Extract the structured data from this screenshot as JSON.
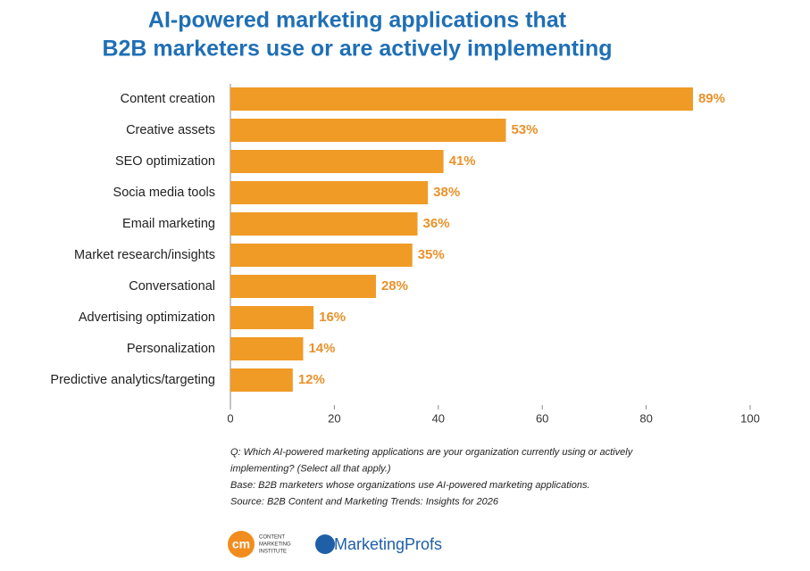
{
  "chart_data": {
    "type": "hbar",
    "title": [
      "AI-powered marketing applications that",
      "B2B marketers use or are actively implementing"
    ],
    "categories": [
      "Content creation",
      "Creative assets",
      "SEO optimization",
      "Socia media tools",
      "Email marketing",
      "Market research/insights",
      "Conversational",
      "Advertising optimization",
      "Personalization",
      "Predictive analytics/targeting"
    ],
    "values": [
      89,
      53,
      41,
      38,
      36,
      35,
      28,
      16,
      14,
      12
    ],
    "value_labels": [
      "89%",
      "53%",
      "41%",
      "38%",
      "36%",
      "35%",
      "28%",
      "16%",
      "14%",
      "12%"
    ],
    "color": "#ef9b26",
    "xlim": [
      0,
      100
    ],
    "xticks": [
      0,
      20,
      40,
      60,
      80,
      100
    ],
    "notes": [
      "Q: Which AI-powered marketing applications are your organization currently using or actively",
      "implementing? (Select all that apply.)",
      "Base: B2B marketers whose organizations use AI-powered marketing applications.",
      "Source: B2B Content and Marketing Trends: Insights for 2026"
    ]
  },
  "logos": {
    "cmi_mark": "cm",
    "cmi_text": [
      "CONTENT",
      "MARKETING",
      "INSTITUTE"
    ],
    "profs": "MarketingProfs"
  }
}
